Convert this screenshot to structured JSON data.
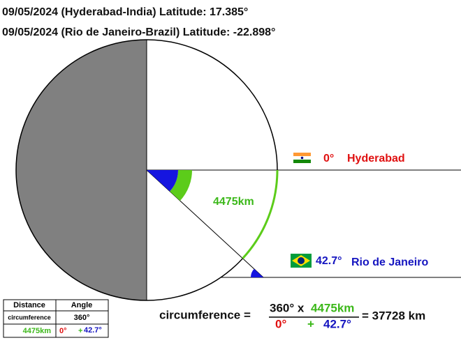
{
  "title_lines": [
    "09/05/2024 (Hyderabad-India) Latitude: 17.385°",
    "09/05/2024  (Rio de Janeiro-Brazil) Latitude: -22.898°"
  ],
  "markers": {
    "hyderabad": {
      "angle": "0°",
      "name": "Hyderabad"
    },
    "rio": {
      "angle": "42.7°",
      "name": "Rio de Janeiro"
    }
  },
  "arc_label": "4475km",
  "table": {
    "header": [
      "Distance",
      "Angle"
    ],
    "rows": [
      [
        "circumference",
        "360°"
      ],
      [
        "4475km",
        "0°",
        "+",
        "42.7°"
      ]
    ]
  },
  "formula": {
    "lhs": "circumference =",
    "numerator": [
      "360° x",
      "4475km"
    ],
    "denominator": [
      "0°",
      "+",
      "42.7°"
    ],
    "result": "= 37728 km"
  }
}
